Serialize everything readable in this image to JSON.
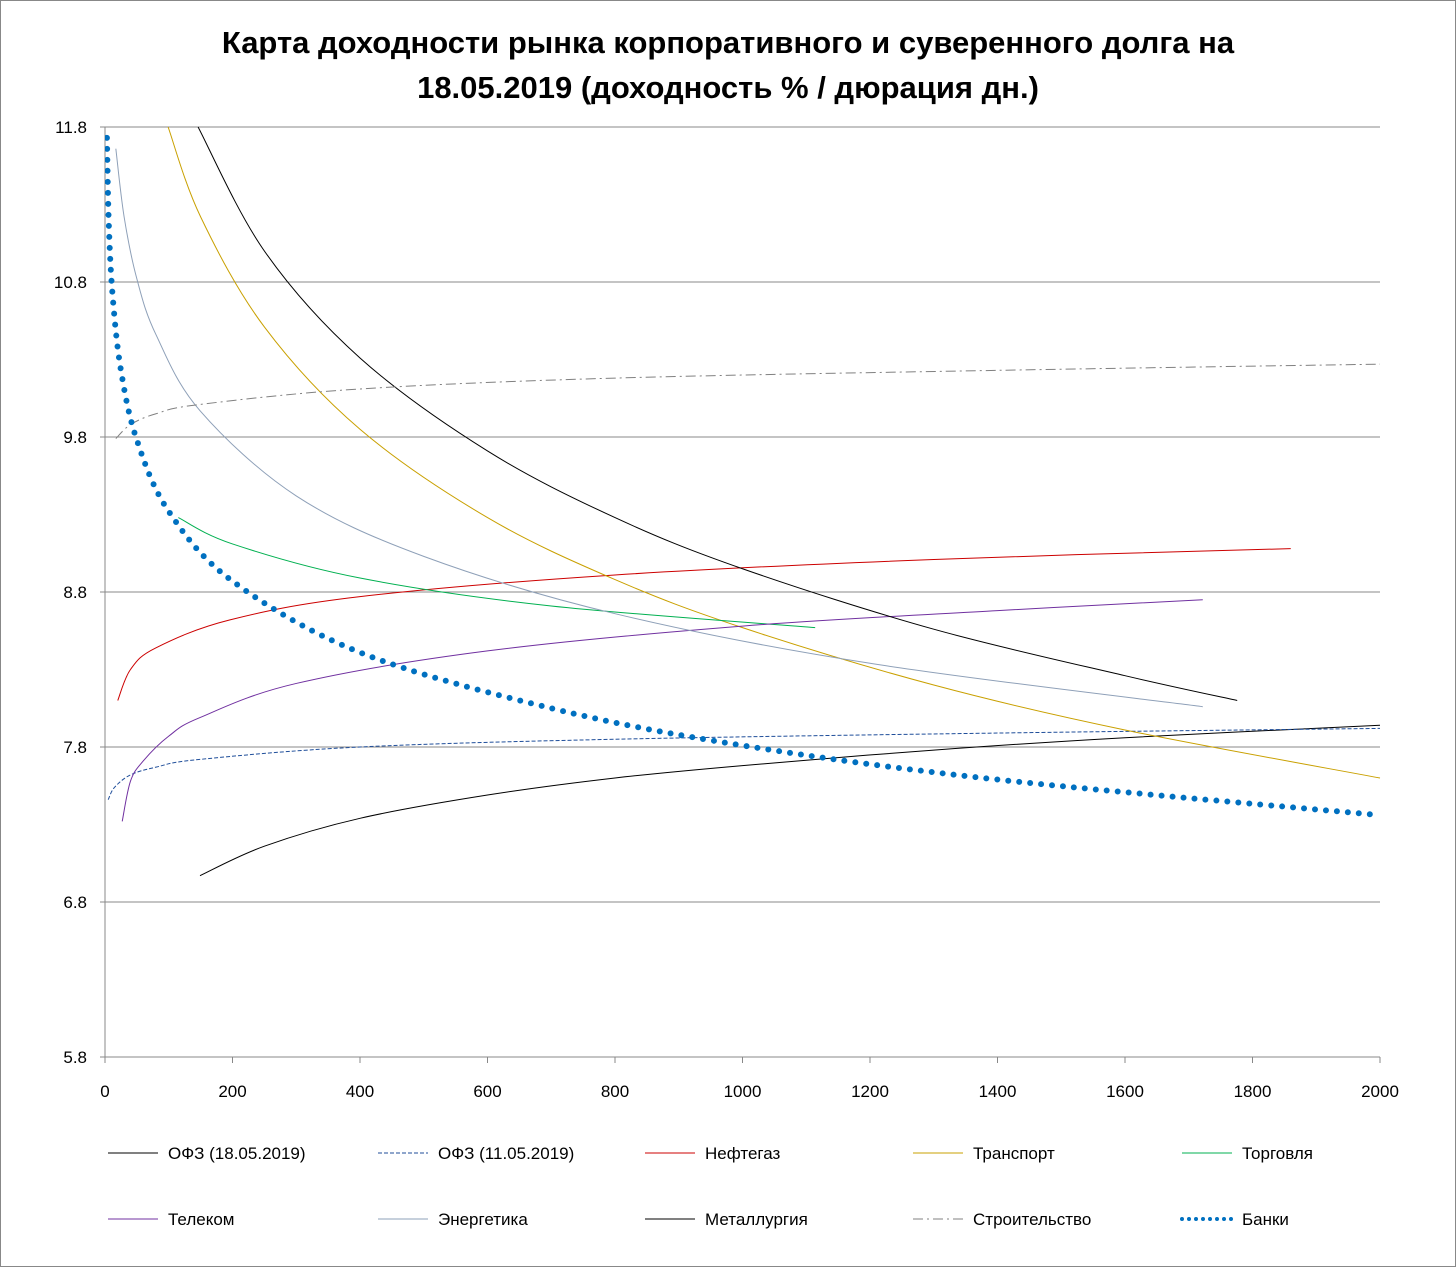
{
  "chart_data": {
    "type": "line",
    "title_line1": "Карта доходности рынка корпоративного и суверенного долга на",
    "title_line2": "18.05.2019 (доходность % / дюрация дн.)",
    "xlabel": "",
    "ylabel": "",
    "xlim": [
      0,
      2000
    ],
    "ylim": [
      5.8,
      11.8
    ],
    "x_ticks": [
      "0",
      "200",
      "400",
      "600",
      "800",
      "1000",
      "1200",
      "1400",
      "1600",
      "1800",
      "2000"
    ],
    "y_ticks": [
      "5.8",
      "6.8",
      "7.8",
      "8.8",
      "9.8",
      "10.8",
      "11.8"
    ],
    "grid": "horizontal",
    "legend_position": "bottom",
    "series": [
      {
        "name": "ОФЗ (18.05.2019)",
        "color": "#000000",
        "style": "solid",
        "width": 1,
        "points": [
          [
            149,
            6.97
          ],
          [
            250,
            7.16
          ],
          [
            400,
            7.34
          ],
          [
            600,
            7.49
          ],
          [
            800,
            7.6
          ],
          [
            1000,
            7.68
          ],
          [
            1300,
            7.78
          ],
          [
            1600,
            7.86
          ],
          [
            2000,
            7.94
          ]
        ]
      },
      {
        "name": "ОФЗ (11.05.2019)",
        "color": "#1F4E9A",
        "style": "dash",
        "width": 1,
        "points": [
          [
            5,
            7.46
          ],
          [
            15,
            7.54
          ],
          [
            40,
            7.62
          ],
          [
            80,
            7.67
          ],
          [
            149,
            7.72
          ],
          [
            400,
            7.8
          ],
          [
            800,
            7.85
          ],
          [
            1400,
            7.89
          ],
          [
            2000,
            7.92
          ]
        ]
      },
      {
        "name": "Нефтегаз",
        "color": "#CC0000",
        "style": "solid",
        "width": 1,
        "points": [
          [
            20,
            8.1
          ],
          [
            40,
            8.3
          ],
          [
            80,
            8.44
          ],
          [
            196,
            8.62
          ],
          [
            400,
            8.77
          ],
          [
            800,
            8.91
          ],
          [
            1300,
            9.01
          ],
          [
            1860,
            9.08
          ]
        ]
      },
      {
        "name": "Транспорт",
        "color": "#C9A000",
        "style": "solid",
        "width": 1,
        "points": [
          [
            99,
            11.8
          ],
          [
            150,
            11.22
          ],
          [
            250,
            10.51
          ],
          [
            400,
            9.85
          ],
          [
            600,
            9.28
          ],
          [
            800,
            8.88
          ],
          [
            1000,
            8.57
          ],
          [
            1300,
            8.2
          ],
          [
            1600,
            7.91
          ],
          [
            2000,
            7.6
          ]
        ]
      },
      {
        "name": "Торговля",
        "color": "#00B050",
        "style": "solid",
        "width": 1,
        "points": [
          [
            115,
            9.28
          ],
          [
            200,
            9.11
          ],
          [
            400,
            8.89
          ],
          [
            700,
            8.71
          ],
          [
            1114,
            8.57
          ]
        ]
      },
      {
        "name": "Телеком",
        "color": "#7030A0",
        "style": "solid",
        "width": 1,
        "points": [
          [
            27,
            7.32
          ],
          [
            40,
            7.58
          ],
          [
            60,
            7.71
          ],
          [
            100,
            7.87
          ],
          [
            149,
            7.99
          ],
          [
            300,
            8.21
          ],
          [
            600,
            8.42
          ],
          [
            1000,
            8.58
          ],
          [
            1400,
            8.68
          ],
          [
            1722,
            8.75
          ]
        ]
      },
      {
        "name": "Энергетика",
        "color": "#8EA0B8",
        "style": "solid",
        "width": 1,
        "points": [
          [
            17,
            11.66
          ],
          [
            30,
            11.22
          ],
          [
            50,
            10.82
          ],
          [
            80,
            10.46
          ],
          [
            149,
            9.97
          ],
          [
            300,
            9.42
          ],
          [
            500,
            9.03
          ],
          [
            800,
            8.66
          ],
          [
            1200,
            8.34
          ],
          [
            1722,
            8.06
          ]
        ]
      },
      {
        "name": "Металлургия",
        "color": "#000000",
        "style": "solid",
        "width": 1,
        "points": [
          [
            146,
            11.8
          ],
          [
            250,
            11.0
          ],
          [
            400,
            10.31
          ],
          [
            600,
            9.71
          ],
          [
            800,
            9.28
          ],
          [
            1000,
            8.95
          ],
          [
            1300,
            8.56
          ],
          [
            1600,
            8.26
          ],
          [
            1776,
            8.1
          ]
        ]
      },
      {
        "name": "Строительство",
        "color": "#808080",
        "style": "dashdot",
        "width": 1,
        "points": [
          [
            17,
            9.79
          ],
          [
            40,
            9.88
          ],
          [
            80,
            9.95
          ],
          [
            149,
            10.01
          ],
          [
            400,
            10.11
          ],
          [
            800,
            10.18
          ],
          [
            1400,
            10.23
          ],
          [
            2000,
            10.27
          ]
        ]
      },
      {
        "name": "Банки",
        "color": "#0070C0",
        "style": "dot",
        "width": 6,
        "points": [
          [
            3,
            11.73
          ],
          [
            6,
            11.17
          ],
          [
            12,
            10.71
          ],
          [
            25,
            10.23
          ],
          [
            50,
            9.78
          ],
          [
            100,
            9.32
          ],
          [
            200,
            8.87
          ],
          [
            400,
            8.41
          ],
          [
            700,
            8.05
          ],
          [
            1000,
            7.81
          ],
          [
            1400,
            7.59
          ],
          [
            2000,
            7.36
          ]
        ]
      }
    ]
  }
}
